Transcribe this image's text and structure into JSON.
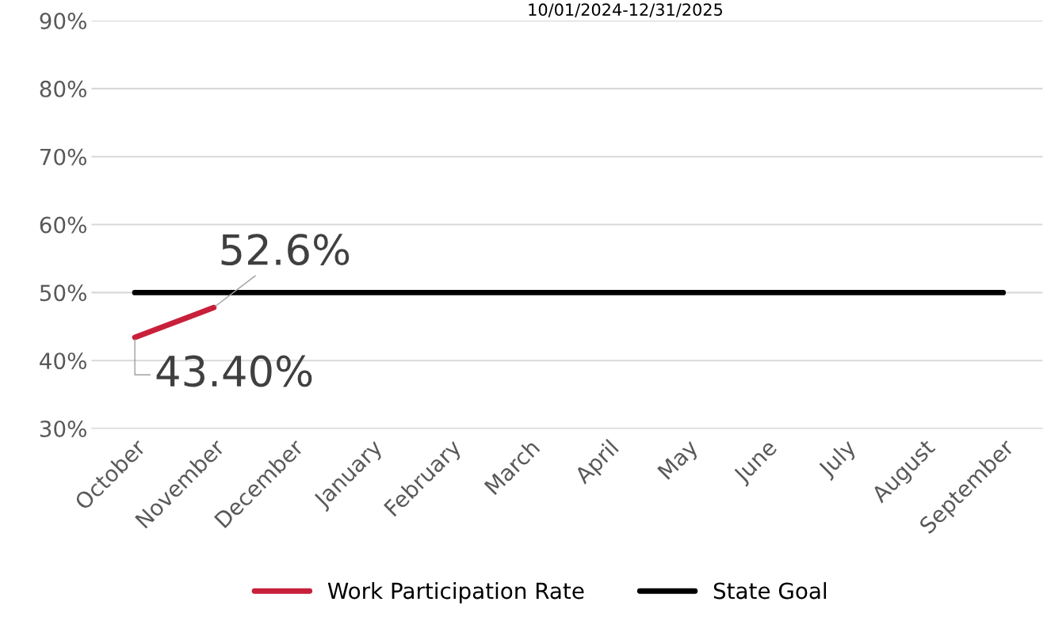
{
  "chart_data": {
    "type": "line",
    "title": "10/01/2024-12/31/2025",
    "categories": [
      "October",
      "November",
      "December",
      "January",
      "February",
      "March",
      "April",
      "May",
      "June",
      "July",
      "August",
      "September"
    ],
    "series": [
      {
        "name": "Work Participation Rate",
        "color": "#c8203a",
        "values": [
          43.4,
          47.8,
          null,
          null,
          null,
          null,
          null,
          null,
          null,
          null,
          null,
          null
        ],
        "value_labels": [
          "43.40%",
          null,
          null,
          null,
          null,
          null,
          null,
          null,
          null,
          null,
          null,
          null
        ]
      },
      {
        "name": "State Goal",
        "color": "#000000",
        "values": [
          50,
          50,
          50,
          50,
          50,
          50,
          50,
          50,
          50,
          50,
          50,
          50
        ]
      }
    ],
    "annotations": [
      "52.6%"
    ],
    "ylim": [
      30,
      90
    ],
    "yticks": [
      {
        "value": 30,
        "label": "30%"
      },
      {
        "value": 40,
        "label": "40%"
      },
      {
        "value": 50,
        "label": "50%"
      },
      {
        "value": 60,
        "label": "60%"
      },
      {
        "value": 70,
        "label": "70%"
      },
      {
        "value": 80,
        "label": "80%"
      },
      {
        "value": 90,
        "label": "90%"
      }
    ],
    "grid": "y",
    "legend": "bottom",
    "marker": "none",
    "line_style": "solid"
  }
}
